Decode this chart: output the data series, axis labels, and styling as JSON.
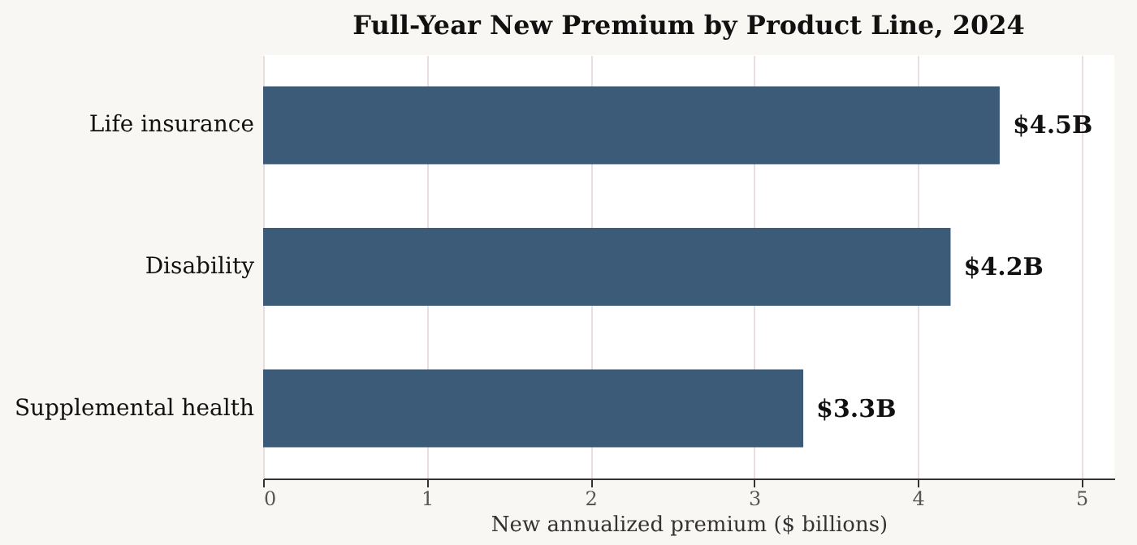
{
  "chart_data": {
    "type": "bar",
    "orientation": "horizontal",
    "title": "Full-Year New Premium by Product Line, 2024",
    "xlabel": "New annualized premium ($ billions)",
    "categories": [
      "Life insurance",
      "Disability",
      "Supplemental health"
    ],
    "values": [
      4.5,
      4.2,
      3.3
    ],
    "color": "#3b5b78",
    "value_labels": [
      "$4.5B",
      "$4.2B",
      "$3.3B"
    ],
    "xlim": [
      0,
      5.2
    ],
    "xticks": [
      0,
      1,
      2,
      3,
      4,
      5
    ],
    "grid": "x"
  }
}
